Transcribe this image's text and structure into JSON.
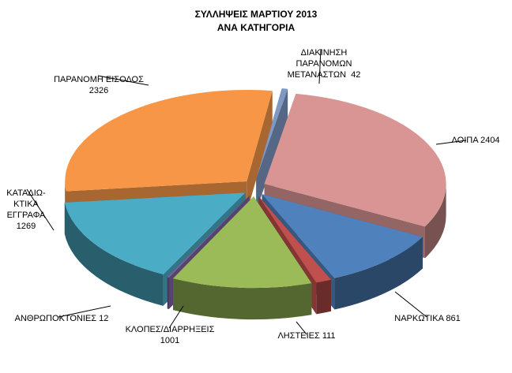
{
  "chart_data": {
    "type": "pie",
    "title": "ΣΥΛΛΗΨΕΙΣ ΜΑΡΤΙΟΥ 2013",
    "subtitle": "ΑΝΑ ΚΑΤΗΓΟΡΙΑ",
    "slices": [
      {
        "label": "ΛΟΙΠΑ",
        "value": 2404,
        "color": "#d99594",
        "display": "ΛΟΙΠΑ 2404"
      },
      {
        "label": "ΝΑΡΚΩΤΙΚΑ",
        "value": 861,
        "color": "#4f81bd",
        "display": "ΝΑΡΚΩΤΙΚΑ 861"
      },
      {
        "label": "ΛΗΣΤΕΙΕΣ",
        "value": 111,
        "color": "#c0504d",
        "display": "ΛΗΣΤΕΙΕΣ 111"
      },
      {
        "label": "ΚΛΟΠΕΣ/ΔΙΑΡΡΗΞΕΙΣ",
        "value": 1001,
        "color": "#9bbb59",
        "display": "ΚΛΟΠΕΣ/ΔΙΑΡΡΗΞΕΙΣ\n1001"
      },
      {
        "label": "ΑΝΘΡΩΠΟΚΤΟΝΙΕΣ",
        "value": 12,
        "color": "#8064a2",
        "display": "ΑΝΘΡΩΠΟΚΤΟΝΙΕΣ 12"
      },
      {
        "label": "ΚΑΤΑΔΙΩΚΤΙΚΑ ΕΓΓΡΑΦΑ",
        "value": 1269,
        "color": "#4bacc6",
        "display": "ΚΑΤΑΔΙΩ-\nΚΤΙΚΑ\nΕΓΓΡΑΦΑ\n1269"
      },
      {
        "label": "ΠΑΡΑΝΟΜΗ ΕΙΣΟΔΟΣ",
        "value": 2326,
        "color": "#f79646",
        "display": "ΠΑΡΑΝΟΜΗ ΕΙΣΟΔΟΣ\n2326"
      },
      {
        "label": "ΔΙΑΚΙΝΗΣΗ ΠΑΡΑΝΟΜΩΝ ΜΕΤΑΝΑΣΤΩΝ",
        "value": 42,
        "color": "#7f98c4",
        "display": "ΔΙΑΚΙΝΗΣΗ\nΠΑΡΑΝΟΜΩΝ\nΜΕΤΑΝΑΣΤΩΝ  42"
      }
    ],
    "legend": "none",
    "exploded": true,
    "style": "3d"
  }
}
